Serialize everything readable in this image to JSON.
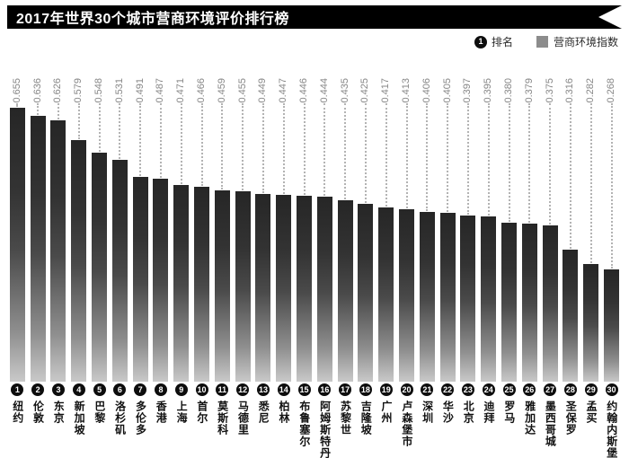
{
  "title": "2017年世界30个城市营商环境评价排行榜",
  "legend": {
    "rank_symbol": "1",
    "rank_label": "排名",
    "index_label": "营商环境指数",
    "index_swatch_color": "#8c8c8c"
  },
  "colors": {
    "banner": "#000000",
    "bar_gradient_top": "#262626",
    "bar_gradient_bottom": "#c9c9c9",
    "value_label_text": "#878787",
    "leader_line": "#b3b3b3",
    "rank_circle": "#0d0d0d",
    "city_text": "#111111"
  },
  "chart_data": {
    "type": "bar",
    "title": "2017年世界30个城市营商环境评价排行榜",
    "xlabel": "",
    "ylabel": "营商环境指数",
    "ylim": [
      0,
      0.7
    ],
    "grid": false,
    "legend_position": "top-right",
    "value_labels_rotated": true,
    "ranks": [
      1,
      2,
      3,
      4,
      5,
      6,
      7,
      8,
      9,
      10,
      11,
      12,
      13,
      14,
      15,
      16,
      17,
      18,
      19,
      20,
      21,
      22,
      23,
      24,
      25,
      26,
      27,
      28,
      29,
      30
    ],
    "categories": [
      "纽约",
      "伦敦",
      "东京",
      "新加坡",
      "巴黎",
      "洛杉矶",
      "多伦多",
      "香港",
      "上海",
      "首尔",
      "莫斯科",
      "马德里",
      "悉尼",
      "柏林",
      "布鲁塞尔",
      "阿姆斯特丹",
      "苏黎世",
      "吉隆坡",
      "广州",
      "卢森堡市",
      "深圳",
      "华沙",
      "北京",
      "迪拜",
      "罗马",
      "雅加达",
      "墨西哥城",
      "圣保罗",
      "孟买",
      "约翰内斯堡"
    ],
    "values": [
      0.655,
      0.636,
      0.626,
      0.579,
      0.548,
      0.531,
      0.491,
      0.487,
      0.471,
      0.466,
      0.459,
      0.455,
      0.449,
      0.447,
      0.446,
      0.444,
      0.435,
      0.425,
      0.417,
      0.413,
      0.406,
      0.405,
      0.397,
      0.395,
      0.38,
      0.379,
      0.375,
      0.316,
      0.282,
      0.268
    ],
    "value_labels": [
      "0.655",
      "0.636",
      "0.626",
      "0.579",
      "0.548",
      "0.531",
      "0.491",
      "0.487",
      "0.471",
      "0.466",
      "0.459",
      "0.455",
      "0.449",
      "0.447",
      "0.446",
      "0.444",
      "0.435",
      "0.425",
      "0.417",
      "0.413",
      "0.406",
      "0.405",
      "0.397",
      "0.395",
      "0.380",
      "0.379",
      "0.375",
      "0.316",
      "0.282",
      "0.268"
    ]
  }
}
